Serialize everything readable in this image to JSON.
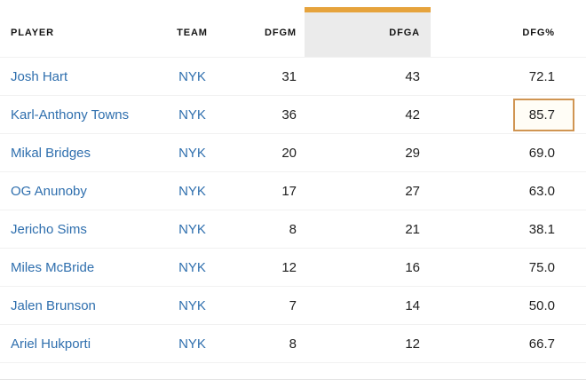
{
  "colors": {
    "accent_gold": "#E6A33C",
    "column_highlight_bg": "#EBEBEB",
    "highlight_border": "#D09552",
    "highlight_bg": "#FFFDF6",
    "link_blue": "#2F6FAE",
    "text_dark": "#1E1E1E",
    "header_text": "#141414",
    "divider": "#F1F1F1",
    "page_bottom_border": "#E3E3E3"
  },
  "table": {
    "columns": [
      {
        "label": "PLAYER"
      },
      {
        "label": "TEAM"
      },
      {
        "label": "DFGM"
      },
      {
        "label": "DFGA"
      },
      {
        "label": "DFG%"
      }
    ],
    "sorted_column_label": "DFGA",
    "highlight": {
      "row_index": 1,
      "field": "dfgp",
      "value": "85.7"
    },
    "rows": [
      {
        "player": "Josh Hart",
        "team": "NYK",
        "dfgm": "31",
        "dfga": "43",
        "dfgp": "72.1"
      },
      {
        "player": "Karl-Anthony Towns",
        "team": "NYK",
        "dfgm": "36",
        "dfga": "42",
        "dfgp": "85.7"
      },
      {
        "player": "Mikal Bridges",
        "team": "NYK",
        "dfgm": "20",
        "dfga": "29",
        "dfgp": "69.0"
      },
      {
        "player": "OG Anunoby",
        "team": "NYK",
        "dfgm": "17",
        "dfga": "27",
        "dfgp": "63.0"
      },
      {
        "player": "Jericho Sims",
        "team": "NYK",
        "dfgm": "8",
        "dfga": "21",
        "dfgp": "38.1"
      },
      {
        "player": "Miles McBride",
        "team": "NYK",
        "dfgm": "12",
        "dfga": "16",
        "dfgp": "75.0"
      },
      {
        "player": "Jalen Brunson",
        "team": "NYK",
        "dfgm": "7",
        "dfga": "14",
        "dfgp": "50.0"
      },
      {
        "player": "Ariel Hukporti",
        "team": "NYK",
        "dfgm": "8",
        "dfga": "12",
        "dfgp": "66.7"
      }
    ]
  }
}
